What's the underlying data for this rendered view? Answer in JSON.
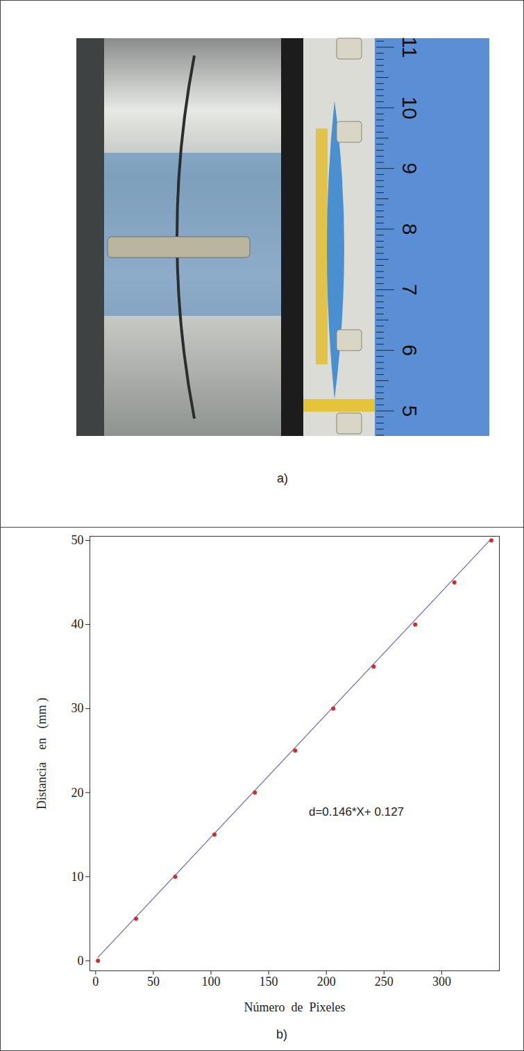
{
  "photo": {
    "label": "a)",
    "ruler_labels": [
      5,
      6,
      7,
      8,
      9,
      10,
      11
    ]
  },
  "chart_data": {
    "type": "scatter",
    "panel_label": "b)",
    "x_label": "Número  de  Pixeles",
    "y_label": "Distancia    en   (mm )",
    "annotation": "d=0.146*X+ 0.127",
    "xlim": [
      -5,
      350
    ],
    "ylim": [
      -1.2,
      50.5
    ],
    "xticks": [
      0,
      50,
      100,
      150,
      200,
      250,
      300
    ],
    "yticks": [
      0,
      10,
      20,
      30,
      40,
      50
    ],
    "grid": false,
    "series": [
      {
        "type": "line",
        "color": "#6a6ab8",
        "line_style": "solid",
        "x": [
          2,
          343
        ],
        "values": [
          0.4,
          50.2
        ]
      },
      {
        "type": "scatter",
        "color": "#d42a2a",
        "marker": "circle",
        "x": [
          2,
          35,
          69,
          103,
          138,
          173,
          206,
          241,
          277,
          311,
          343
        ],
        "values": [
          0,
          5,
          10,
          15,
          20,
          25,
          30,
          35,
          40,
          45,
          50
        ]
      }
    ]
  }
}
